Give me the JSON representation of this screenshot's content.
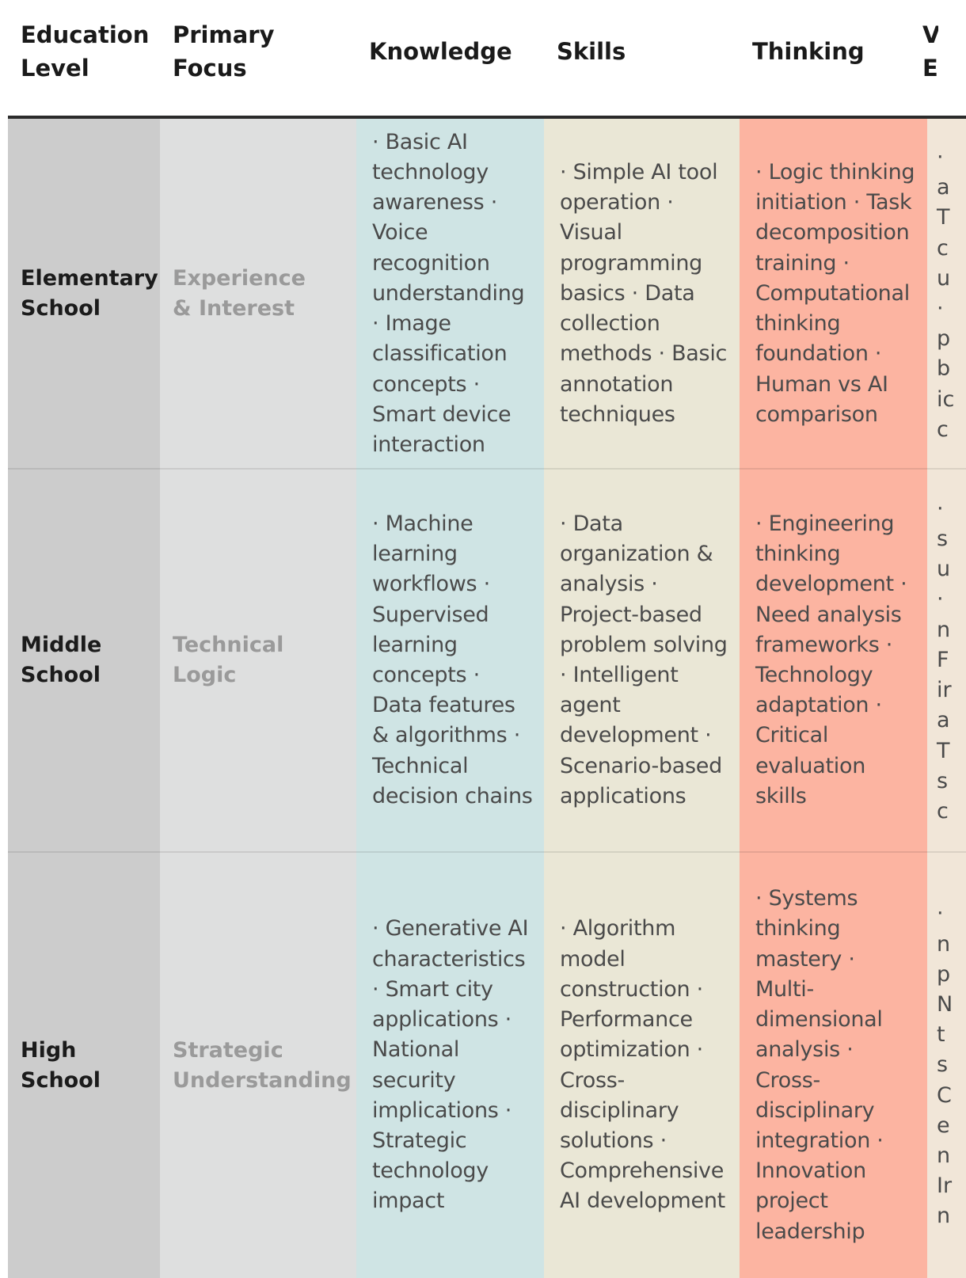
{
  "table": {
    "headers": {
      "education_level": "Education Level",
      "primary_focus": "Primary Focus",
      "knowledge": "Knowledge",
      "skills": "Skills",
      "thinking": "Thinking",
      "values_partial": "V E"
    },
    "rows": [
      {
        "level": "Elementary School",
        "focus": "Experience & Interest",
        "knowledge": "· Basic AI technology awareness · Voice recognition understanding · Image classification concepts · Smart device interaction",
        "skills": "· Simple AI tool operation · Visual programming basics · Data collection methods · Basic annotation techniques",
        "thinking": "· Logic thinking initiation · Task decomposition training · Computational thinking foundation · Human vs AI comparison",
        "values_partial": "· a T c u · p b ic c"
      },
      {
        "level": "Middle School",
        "focus": "Technical Logic",
        "knowledge": "· Machine learning workflows · Supervised learning concepts · Data features & algorithms · Technical decision chains",
        "skills": "· Data organization & analysis · Project-based problem solving · Intelligent agent development · Scenario-based applications",
        "thinking": "· Engineering thinking development · Need analysis frameworks · Technology adaptation · Critical evaluation skills",
        "values_partial": "· s u · n F ir a T s c"
      },
      {
        "level": "High School",
        "focus": "Strategic Understanding",
        "knowledge": "· Generative AI characteristics · Smart city applications · National security implications · Strategic technology impact",
        "skills": "· Algorithm model construction · Performance optimization · Cross-disciplinary solutions · Comprehensive AI development",
        "thinking": "· Systems thinking mastery · Multi-dimensional analysis · Cross-disciplinary integration · Innovation project leadership",
        "values_partial": "· n p N t s C e n Ir n"
      }
    ]
  }
}
